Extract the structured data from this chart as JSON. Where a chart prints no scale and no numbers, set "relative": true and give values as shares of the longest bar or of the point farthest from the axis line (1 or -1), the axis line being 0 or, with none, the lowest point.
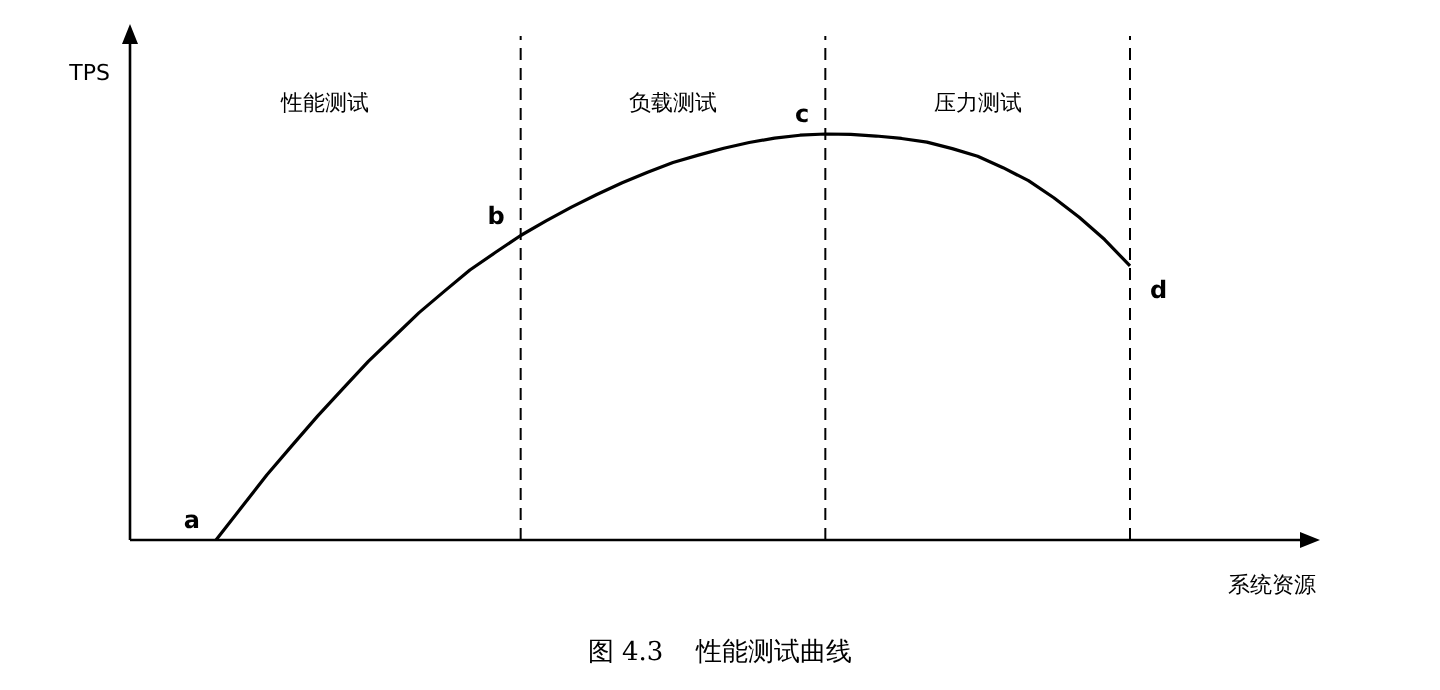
{
  "chart_data": {
    "type": "line",
    "relative": true,
    "ylabel": "TPS",
    "xlabel": "系统资源",
    "categories": [
      null,
      null,
      null,
      null,
      null,
      null,
      null,
      null,
      null,
      null,
      null,
      null,
      null,
      null,
      null,
      null,
      null,
      null,
      null,
      null,
      null,
      null,
      null,
      null,
      null,
      null,
      null,
      null,
      null,
      null,
      null,
      null,
      null,
      null,
      null,
      null,
      null
    ],
    "series": [
      {
        "color": "#000000",
        "values": [
          0,
          0.08,
          0.16,
          0.233,
          0.305,
          0.373,
          0.44,
          0.5,
          0.56,
          0.613,
          0.665,
          0.708,
          0.75,
          0.786,
          0.82,
          0.851,
          0.88,
          0.906,
          0.93,
          0.948,
          0.965,
          0.979,
          0.99,
          0.997,
          1,
          0.999,
          0.995,
          0.989,
          0.98,
          0.964,
          0.945,
          0.917,
          0.885,
          0.843,
          0.795,
          0.74,
          0.675
        ]
      }
    ],
    "line_style": "solid",
    "marker": "none",
    "grid": "x",
    "annotations": [
      "性能测试",
      "负载测试",
      "压力测试",
      "图 4.3    性能测试曲线",
      "a",
      "b",
      "c",
      "d"
    ]
  }
}
